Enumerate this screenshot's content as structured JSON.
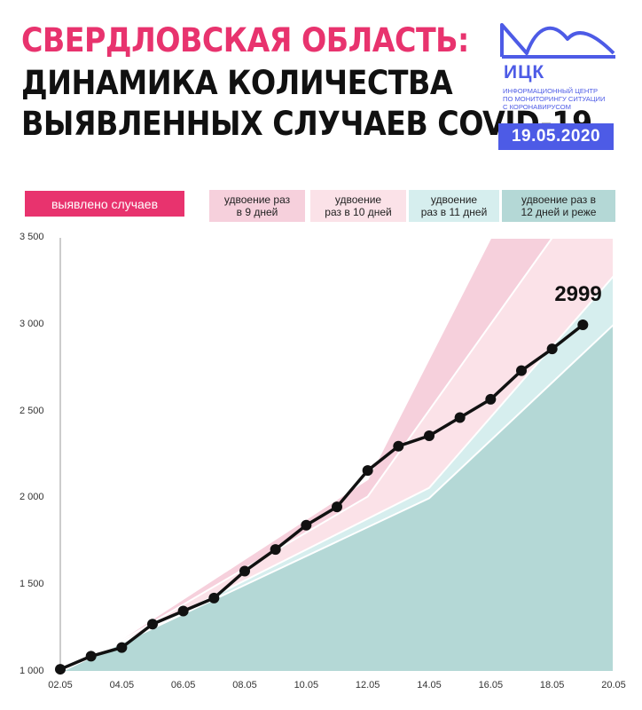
{
  "header": {
    "title_line1": "СВЕРДЛОВСКАЯ ОБЛАСТЬ:",
    "title_line2": "ДИНАМИКА КОЛИЧЕСТВА",
    "title_line3": "ВЫЯВЛЕННЫХ СЛУЧАЕВ COVID-19"
  },
  "logo": {
    "abbr": "ИЦК",
    "desc_line1": "ИНФОРМАЦИОННЫЙ ЦЕНТР",
    "desc_line2": "ПО МОНИТОРИНГУ СИТУАЦИИ",
    "desc_line3": "С КОРОНАВИРУСОМ",
    "date": "19.05.2020",
    "color": "#4d5be6"
  },
  "legend": {
    "cases": "выявлено случаев",
    "d9_line1": "удвоение раз",
    "d9_line2": "в 9 дней",
    "d10_line1": "удвоение",
    "d10_line2": "раз в 10 дней",
    "d11_line1": "удвоение",
    "d11_line2": "раз в 11 дней",
    "d12_line1": "удвоение раз в",
    "d12_line2": "12 дней и реже"
  },
  "chart_data": {
    "type": "line",
    "ylim": [
      1000,
      3500
    ],
    "xlim": [
      "02.05",
      "20.05"
    ],
    "grid": false,
    "y_ticks": [
      "1 000",
      "1 500",
      "2 000",
      "2 500",
      "3 000",
      "3 500"
    ],
    "y_tick_values": [
      1000,
      1500,
      2000,
      2500,
      3000,
      3500
    ],
    "x_ticks": [
      "02.05",
      "04.05",
      "06.05",
      "08.05",
      "10.05",
      "12.05",
      "14.05",
      "16.05",
      "18.05",
      "20.05"
    ],
    "x_tick_values": [
      2,
      4,
      6,
      8,
      10,
      12,
      14,
      16,
      18,
      20
    ],
    "series": [
      {
        "x": [
          2,
          3,
          4,
          5,
          6,
          7,
          8,
          9,
          10,
          11,
          12,
          13,
          14,
          15,
          16,
          17,
          18,
          19
        ],
        "values": [
          1015,
          1090,
          1140,
          1275,
          1350,
          1425,
          1580,
          1705,
          1845,
          1950,
          2160,
          2300,
          2360,
          2465,
          2570,
          2735,
          2860,
          2999
        ],
        "color": "#111111"
      }
    ],
    "last_value_label": "2999",
    "bands": [
      {
        "color": "#b4d8d6",
        "upper": [
          [
            2,
            1000
          ],
          [
            14,
            2000
          ],
          [
            20,
            3000
          ]
        ]
      },
      {
        "color": "#d6eeee",
        "upper": [
          [
            4,
            1170
          ],
          [
            14,
            2060
          ],
          [
            20,
            3280
          ]
        ]
      },
      {
        "color": "#fbe2e8",
        "upper": [
          [
            4,
            1180
          ],
          [
            12,
            2010
          ],
          [
            18,
            3500
          ]
        ]
      },
      {
        "color": "#f6d0dc",
        "upper": [
          [
            4,
            1190
          ],
          [
            12,
            2110
          ],
          [
            16,
            3500
          ]
        ]
      }
    ],
    "colors": {
      "accent": "#e8336e",
      "line": "#111111"
    }
  }
}
